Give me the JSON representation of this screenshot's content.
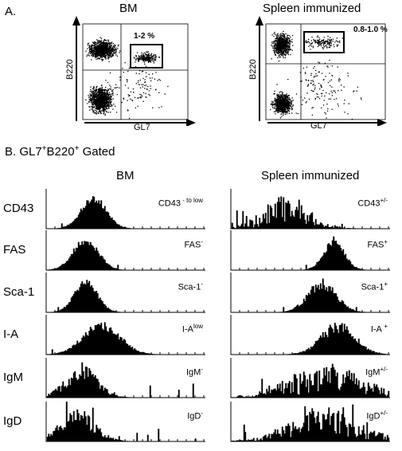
{
  "panel_a": {
    "label": "A.",
    "plots": [
      {
        "title": "BM",
        "x_axis": "GL7",
        "y_axis": "B220",
        "gate_pct": "1-2 %"
      },
      {
        "title": "Spleen immunized",
        "x_axis": "GL7",
        "y_axis": "B220",
        "gate_pct": "0.8-1.0 %"
      }
    ]
  },
  "panel_b": {
    "label_prefix": "B. GL7",
    "label_sup1": "+",
    "label_mid": "B220",
    "label_sup2": "+",
    "label_suffix": " Gated",
    "col_bm": "BM",
    "col_spleen": "Spleen immunized",
    "rows": [
      {
        "name": "CD43",
        "bm_main": "CD43",
        "bm_sup": " - to low",
        "sp_main": "CD43",
        "sp_sup": "+/-"
      },
      {
        "name": "FAS",
        "bm_main": "FAS",
        "bm_sup": "-",
        "sp_main": "FAS",
        "sp_sup": "+"
      },
      {
        "name": "Sca-1",
        "bm_main": "Sca-1",
        "bm_sup": "-",
        "sp_main": "Sca-1",
        "sp_sup": "+"
      },
      {
        "name": "I-A",
        "bm_main": "I-A",
        "bm_sup": "low",
        "sp_main": "I-A ",
        "sp_sup": "+"
      },
      {
        "name": "IgM",
        "bm_main": "IgM",
        "bm_sup": "-",
        "sp_main": "IgM",
        "sp_sup": "+/-"
      },
      {
        "name": "IgD",
        "bm_main": "IgD",
        "bm_sup": "-",
        "sp_main": "IgD",
        "sp_sup": "+/-"
      }
    ]
  }
}
